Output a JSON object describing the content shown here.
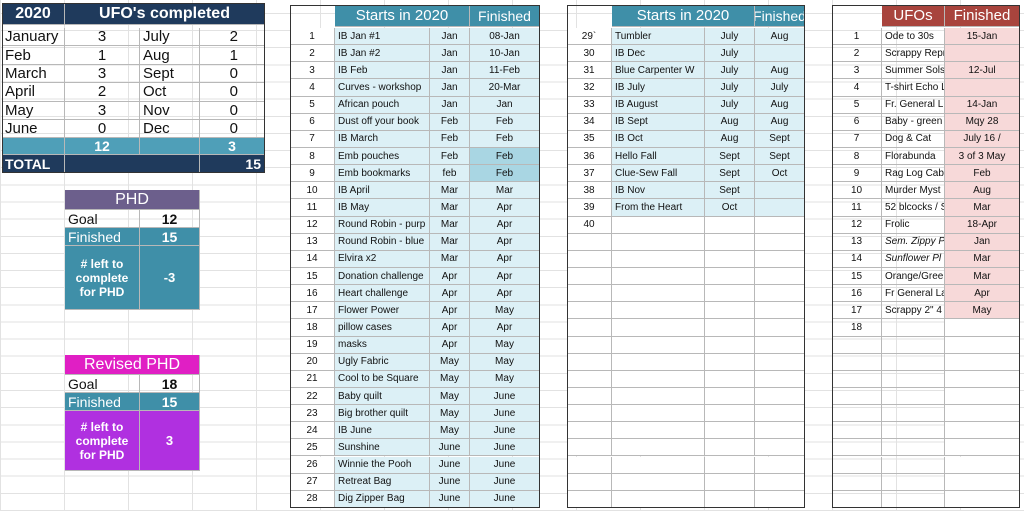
{
  "ufos_completed": {
    "year": "2020",
    "title": "UFO's completed",
    "months": [
      [
        "January",
        3,
        "July",
        2
      ],
      [
        "Feb",
        1,
        "Aug",
        1
      ],
      [
        "March",
        3,
        "Sept",
        0
      ],
      [
        "April",
        2,
        "Oct",
        0
      ],
      [
        "May",
        3,
        "Nov",
        0
      ],
      [
        "June",
        0,
        "Dec",
        0
      ]
    ],
    "subtotals": [
      12,
      3
    ],
    "total_label": "TOTAL",
    "total": 15
  },
  "phd": {
    "title": "PHD",
    "goal_label": "Goal",
    "goal": 12,
    "finished_label": "Finished",
    "finished": 15,
    "left_label": "# left to complete for PHD",
    "left": -3
  },
  "revised_phd": {
    "title": "Revised PHD",
    "goal_label": "Goal",
    "goal": 18,
    "finished_label": "Finished",
    "finished": 15,
    "left_label": "# left to complete for PHD",
    "left": 3
  },
  "starts_2020": {
    "header": [
      "Starts in 2020",
      "Finished"
    ],
    "rows": [
      [
        "1",
        "IB Jan #1",
        "Jan",
        "08-Jan"
      ],
      [
        "2",
        "IB Jan #2",
        "Jan",
        "10-Jan"
      ],
      [
        "3",
        "IB Feb",
        "Jan",
        "11-Feb"
      ],
      [
        "4",
        "Curves - workshop",
        "Jan",
        "20-Mar"
      ],
      [
        "5",
        "African pouch",
        "Jan",
        "Jan"
      ],
      [
        "6",
        "Dust off your book",
        "Feb",
        "Feb"
      ],
      [
        "7",
        "IB March",
        "Feb",
        "Feb"
      ],
      [
        "8",
        "Emb pouches",
        "Feb",
        "Feb"
      ],
      [
        "9",
        "Emb bookmarks",
        "feb",
        "Feb"
      ],
      [
        "10",
        "IB April",
        "Mar",
        "Mar"
      ],
      [
        "11",
        "IB May",
        "Mar",
        "Apr"
      ],
      [
        "12",
        "Round Robin - purp",
        "Mar",
        "Apr"
      ],
      [
        "13",
        "Round Robin - blue",
        "Mar",
        "Apr"
      ],
      [
        "14",
        "Elvira x2",
        "Mar",
        "Apr"
      ],
      [
        "15",
        "Donation challenge",
        "Apr",
        "Apr"
      ],
      [
        "16",
        "Heart challenge",
        "Apr",
        "Apr"
      ],
      [
        "17",
        "Flower Power",
        "Apr",
        "May"
      ],
      [
        "18",
        "pillow cases",
        "Apr",
        "Apr"
      ],
      [
        "19",
        "masks",
        "Apr",
        "May"
      ],
      [
        "20",
        "Ugly Fabric",
        "May",
        "May"
      ],
      [
        "21",
        "Cool to be Square",
        "May",
        "May"
      ],
      [
        "22",
        "Baby quilt",
        "May",
        "June"
      ],
      [
        "23",
        "Big brother quilt",
        "May",
        "June"
      ],
      [
        "24",
        "IB June",
        "May",
        "June"
      ],
      [
        "25",
        "Sunshine",
        "June",
        "June"
      ],
      [
        "26",
        "Winnie the Pooh",
        "June",
        "June"
      ],
      [
        "27",
        "Retreat Bag",
        "June",
        "June"
      ],
      [
        "28",
        "Dig Zipper Bag",
        "June",
        "June"
      ]
    ]
  },
  "starts_2020_cont": {
    "header": [
      "Starts in 2020",
      "Finished"
    ],
    "rows": [
      [
        "29`",
        "Tumbler",
        "July",
        "Aug"
      ],
      [
        "30",
        "IB Dec",
        "July"
      ],
      [
        "31",
        "Blue Carpenter W",
        "July",
        "Aug"
      ],
      [
        "32",
        "IB July",
        "July",
        "July"
      ],
      [
        "33",
        "IB August",
        "July",
        "Aug"
      ],
      [
        "34",
        "IB Sept",
        "Aug",
        "Aug"
      ],
      [
        "35",
        "IB Oct",
        "Aug",
        "Sept"
      ],
      [
        "36",
        "Hello Fall",
        "Sept",
        "Sept"
      ],
      [
        "37",
        "Clue-Sew  Fall",
        "Sept",
        "Oct"
      ],
      [
        "38",
        "IB Nov",
        "Sept"
      ],
      [
        "39",
        "From the Heart",
        "Oct"
      ],
      [
        "40"
      ]
    ]
  },
  "ufos": {
    "header": [
      "UFOs",
      "Finished"
    ],
    "rows": [
      [
        "1",
        "Ode to 30s",
        "15-Jan"
      ],
      [
        "2",
        "Scrappy Repro"
      ],
      [
        "3",
        "Summer Sols",
        "12-Jul"
      ],
      [
        "4",
        "T-shirt Echo Lake"
      ],
      [
        "5",
        "Fr. General L",
        "14-Jan"
      ],
      [
        "6",
        "Baby - green",
        "Mqy 28"
      ],
      [
        "7",
        "Dog & Cat",
        "July 16 /"
      ],
      [
        "8",
        "Florabunda",
        "3 of 3  May"
      ],
      [
        "9",
        "Rag Log Cabi",
        "Feb"
      ],
      [
        "10",
        "Murder Myst",
        "Aug"
      ],
      [
        "11",
        "52 blcocks / S",
        "Mar"
      ],
      [
        "12",
        "Frolic",
        "18-Apr"
      ],
      [
        "13",
        "Sem. Zippy P",
        "Jan"
      ],
      [
        "14",
        "Sunflower Pl",
        "Mar"
      ],
      [
        "15",
        "Orange/Gree",
        "Mar"
      ],
      [
        "16",
        "Fr General La",
        "Apr"
      ],
      [
        "17",
        "Scrappy 2\" 4",
        "May"
      ],
      [
        "18"
      ]
    ]
  }
}
